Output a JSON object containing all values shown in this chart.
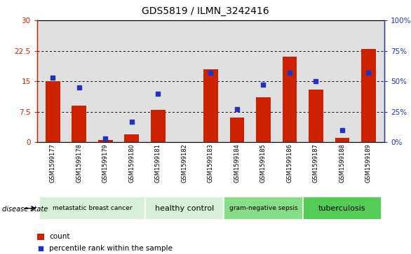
{
  "title": "GDS5819 / ILMN_3242416",
  "samples": [
    "GSM1599177",
    "GSM1599178",
    "GSM1599179",
    "GSM1599180",
    "GSM1599181",
    "GSM1599182",
    "GSM1599183",
    "GSM1599184",
    "GSM1599185",
    "GSM1599186",
    "GSM1599187",
    "GSM1599188",
    "GSM1599189"
  ],
  "counts": [
    15.0,
    9.0,
    0.5,
    2.0,
    8.0,
    0.0,
    18.0,
    6.0,
    11.0,
    21.0,
    13.0,
    1.0,
    23.0
  ],
  "percentiles": [
    53,
    45,
    3,
    17,
    40,
    null,
    57,
    27,
    47,
    57,
    50,
    10,
    57
  ],
  "ylim_left": [
    0,
    30
  ],
  "ylim_right": [
    0,
    100
  ],
  "yticks_left": [
    0,
    7.5,
    15,
    22.5,
    30
  ],
  "ytick_labels_left": [
    "0",
    "7.5",
    "15",
    "22.5",
    "30"
  ],
  "yticks_right": [
    0,
    25,
    50,
    75,
    100
  ],
  "ytick_labels_right": [
    "0%",
    "25%",
    "50%",
    "75%",
    "100%"
  ],
  "bar_color": "#cc2200",
  "dot_color": "#2233bb",
  "bar_width": 0.55,
  "groups": [
    {
      "label": "metastatic breast cancer",
      "indices": [
        0,
        1,
        2,
        3
      ],
      "color": "#d8f0d8"
    },
    {
      "label": "healthy control",
      "indices": [
        4,
        5,
        6
      ],
      "color": "#d8f0d8"
    },
    {
      "label": "gram-negative sepsis",
      "indices": [
        7,
        8,
        9
      ],
      "color": "#88dd88"
    },
    {
      "label": "tuberculosis",
      "indices": [
        10,
        11,
        12
      ],
      "color": "#55cc55"
    }
  ],
  "disease_state_label": "disease state",
  "legend_count": "count",
  "legend_percentile": "percentile rank within the sample",
  "bg_color": "#e0e0e0",
  "tick_color_left": "#cc2200",
  "tick_color_right": "#2233bb"
}
